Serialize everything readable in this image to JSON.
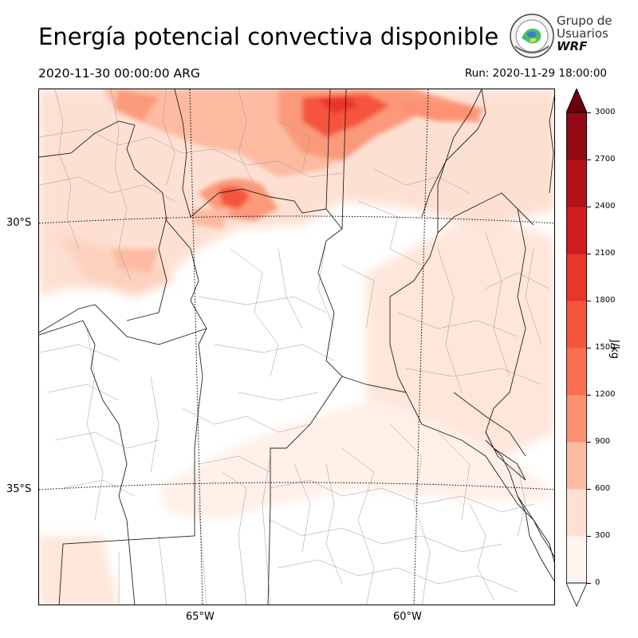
{
  "header": {
    "title": "Energía potencial convectiva disponible",
    "valid_time": "2020-11-30 00:00:00 ARG",
    "run_time": "Run: 2020-11-29 18:00:00"
  },
  "logo": {
    "line1": "Grupo de",
    "line2": "Usuarios",
    "line3": "WRF"
  },
  "map": {
    "lat_labels": [
      "30°S",
      "35°S"
    ],
    "lon_labels": [
      "65°W",
      "60°W"
    ]
  },
  "colorbar": {
    "unit": "J/kg",
    "ticks": [
      "0",
      "300",
      "600",
      "900",
      "1200",
      "1500",
      "1800",
      "2100",
      "2400",
      "2700",
      "3000"
    ],
    "colors": [
      "#fff5f0",
      "#fee0d2",
      "#fcbba1",
      "#fc9272",
      "#fb7050",
      "#f6553c",
      "#e8362b",
      "#cf1c1f",
      "#b21218",
      "#930a14",
      "#6b010e"
    ]
  }
}
